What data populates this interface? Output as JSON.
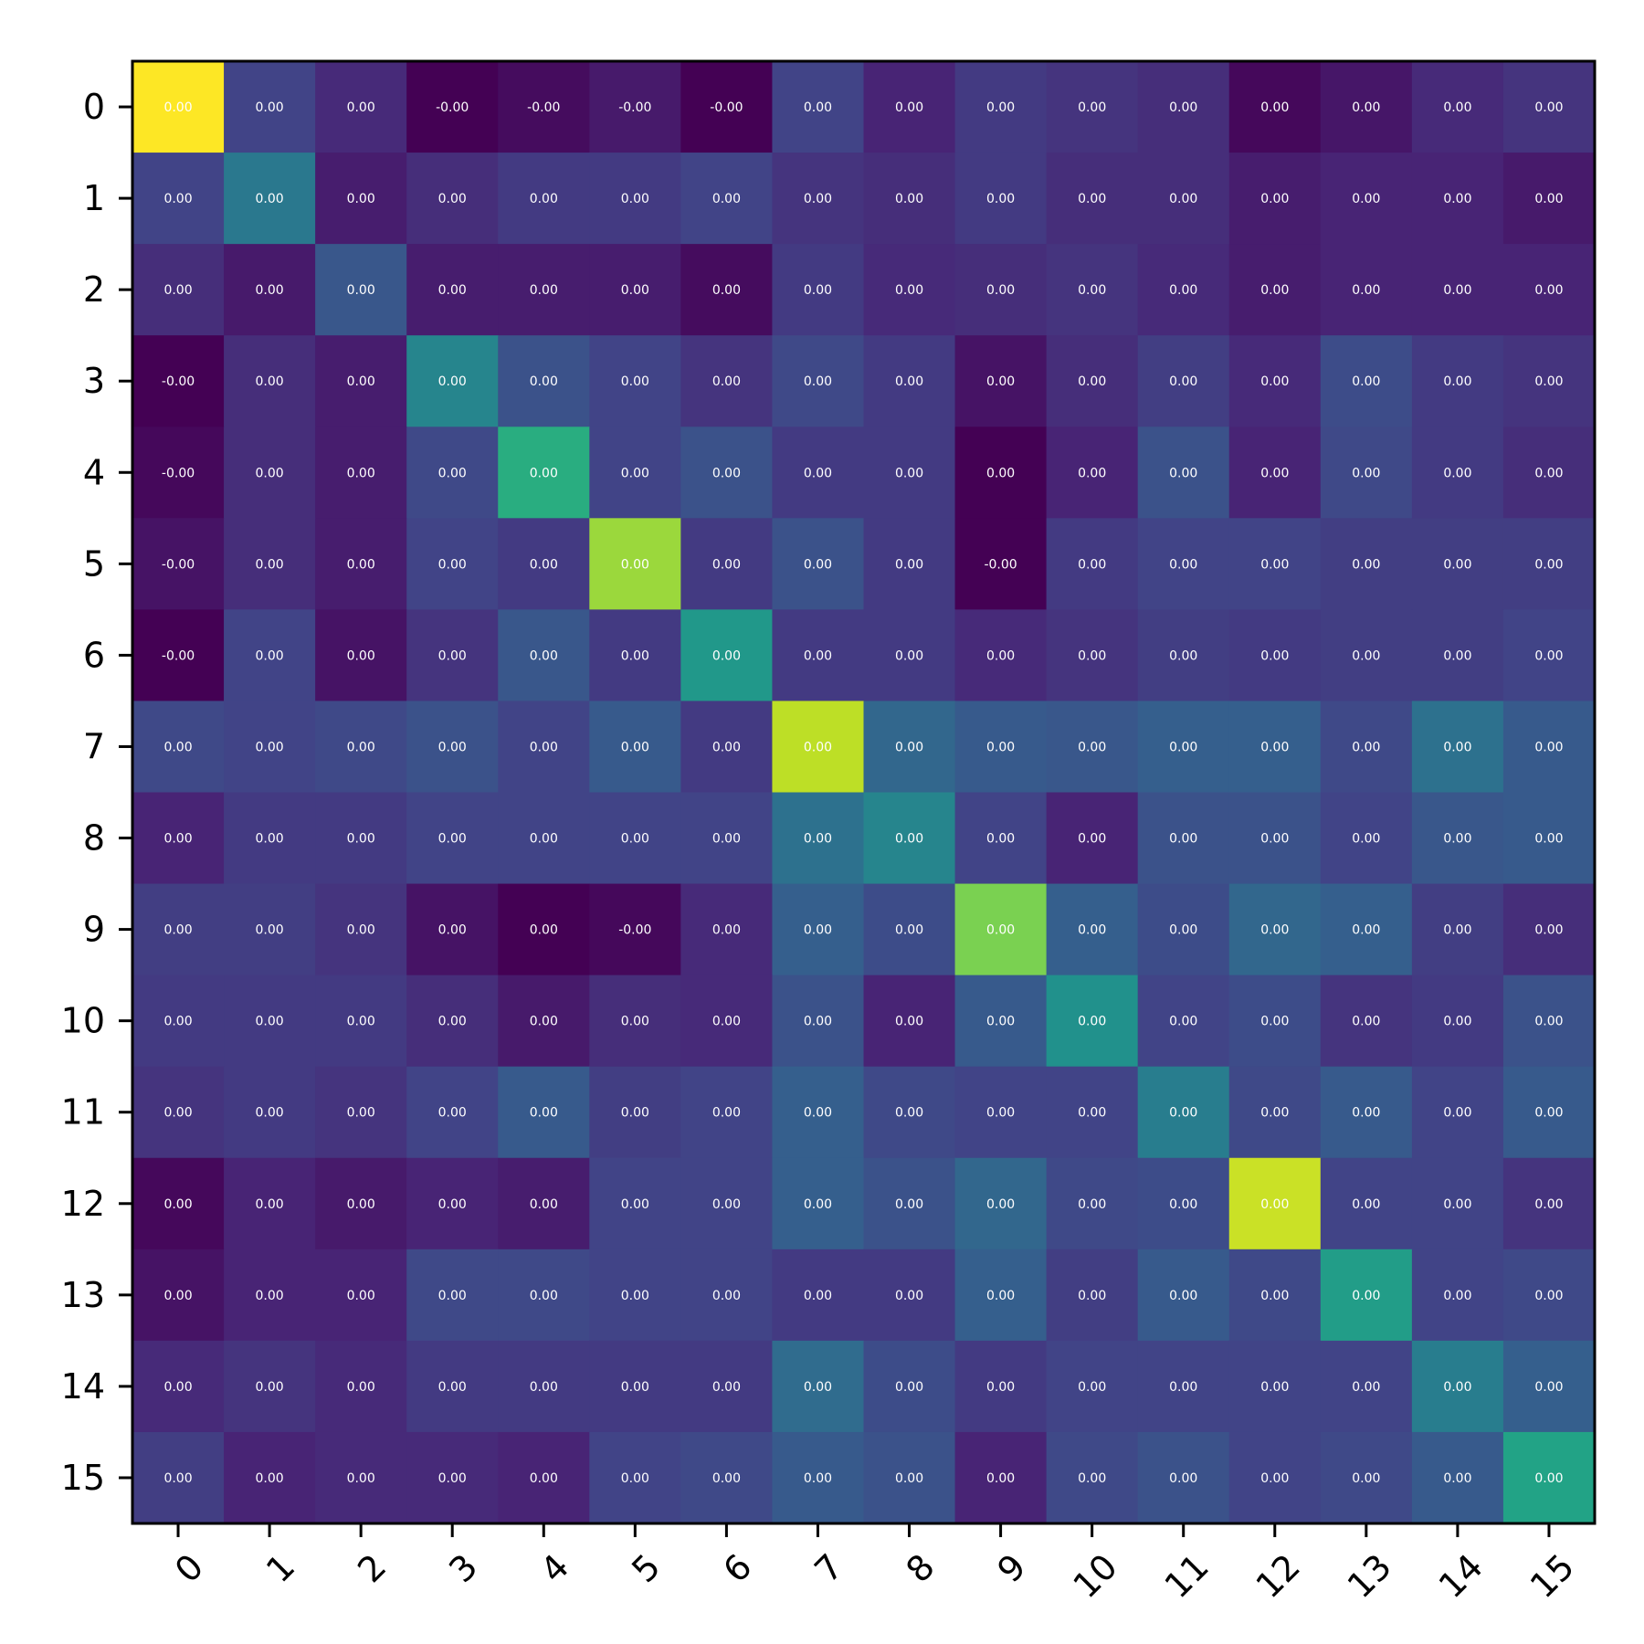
{
  "chart_data": {
    "type": "heatmap",
    "title": "",
    "xlabel": "",
    "ylabel": "",
    "x_ticks": [
      "0",
      "1",
      "2",
      "3",
      "4",
      "5",
      "6",
      "7",
      "8",
      "9",
      "10",
      "11",
      "12",
      "13",
      "14",
      "15"
    ],
    "y_ticks": [
      "0",
      "1",
      "2",
      "3",
      "4",
      "5",
      "6",
      "7",
      "8",
      "9",
      "10",
      "11",
      "12",
      "13",
      "14",
      "15"
    ],
    "colormap": "viridis",
    "colorbar": false,
    "grid": false,
    "intensity": [
      [
        1.0,
        0.2,
        0.12,
        0.0,
        0.03,
        0.07,
        0.0,
        0.2,
        0.1,
        0.17,
        0.15,
        0.13,
        0.02,
        0.06,
        0.12,
        0.15
      ],
      [
        0.2,
        0.4,
        0.08,
        0.13,
        0.17,
        0.17,
        0.2,
        0.15,
        0.13,
        0.17,
        0.13,
        0.13,
        0.08,
        0.1,
        0.1,
        0.07
      ],
      [
        0.13,
        0.07,
        0.27,
        0.08,
        0.08,
        0.08,
        0.03,
        0.17,
        0.12,
        0.13,
        0.15,
        0.12,
        0.08,
        0.1,
        0.1,
        0.1
      ],
      [
        0.0,
        0.13,
        0.08,
        0.45,
        0.25,
        0.2,
        0.15,
        0.22,
        0.17,
        0.05,
        0.13,
        0.18,
        0.12,
        0.23,
        0.17,
        0.15
      ],
      [
        0.02,
        0.13,
        0.08,
        0.22,
        0.62,
        0.2,
        0.25,
        0.17,
        0.17,
        0.0,
        0.1,
        0.25,
        0.1,
        0.22,
        0.17,
        0.13
      ],
      [
        0.05,
        0.13,
        0.08,
        0.2,
        0.17,
        0.85,
        0.17,
        0.25,
        0.17,
        0.0,
        0.17,
        0.2,
        0.2,
        0.18,
        0.18,
        0.18
      ],
      [
        0.0,
        0.2,
        0.05,
        0.15,
        0.27,
        0.17,
        0.53,
        0.17,
        0.17,
        0.12,
        0.15,
        0.18,
        0.17,
        0.18,
        0.18,
        0.2
      ],
      [
        0.22,
        0.2,
        0.22,
        0.25,
        0.2,
        0.28,
        0.17,
        0.9,
        0.33,
        0.28,
        0.27,
        0.3,
        0.3,
        0.22,
        0.37,
        0.28
      ],
      [
        0.1,
        0.17,
        0.17,
        0.2,
        0.2,
        0.2,
        0.2,
        0.37,
        0.45,
        0.2,
        0.1,
        0.25,
        0.25,
        0.2,
        0.27,
        0.28
      ],
      [
        0.18,
        0.18,
        0.15,
        0.05,
        0.0,
        0.02,
        0.12,
        0.3,
        0.23,
        0.8,
        0.3,
        0.23,
        0.33,
        0.3,
        0.18,
        0.13
      ],
      [
        0.17,
        0.17,
        0.17,
        0.13,
        0.07,
        0.13,
        0.12,
        0.25,
        0.1,
        0.28,
        0.5,
        0.2,
        0.23,
        0.15,
        0.17,
        0.25
      ],
      [
        0.15,
        0.17,
        0.15,
        0.2,
        0.28,
        0.18,
        0.2,
        0.3,
        0.22,
        0.2,
        0.2,
        0.42,
        0.22,
        0.28,
        0.2,
        0.28
      ],
      [
        0.02,
        0.1,
        0.07,
        0.1,
        0.08,
        0.2,
        0.2,
        0.3,
        0.25,
        0.33,
        0.22,
        0.23,
        0.92,
        0.2,
        0.2,
        0.15
      ],
      [
        0.05,
        0.1,
        0.1,
        0.22,
        0.22,
        0.2,
        0.2,
        0.17,
        0.17,
        0.3,
        0.18,
        0.28,
        0.22,
        0.55,
        0.2,
        0.22
      ],
      [
        0.12,
        0.15,
        0.12,
        0.17,
        0.17,
        0.17,
        0.17,
        0.35,
        0.23,
        0.17,
        0.2,
        0.2,
        0.2,
        0.2,
        0.42,
        0.3
      ],
      [
        0.18,
        0.1,
        0.12,
        0.12,
        0.1,
        0.2,
        0.22,
        0.28,
        0.25,
        0.1,
        0.22,
        0.25,
        0.2,
        0.22,
        0.28,
        0.58
      ]
    ],
    "cell_labels": [
      [
        "0.00",
        "0.00",
        "0.00",
        "-0.00",
        "-0.00",
        "-0.00",
        "-0.00",
        "0.00",
        "0.00",
        "0.00",
        "0.00",
        "0.00",
        "0.00",
        "0.00",
        "0.00",
        "0.00"
      ],
      [
        "0.00",
        "0.00",
        "0.00",
        "0.00",
        "0.00",
        "0.00",
        "0.00",
        "0.00",
        "0.00",
        "0.00",
        "0.00",
        "0.00",
        "0.00",
        "0.00",
        "0.00",
        "0.00"
      ],
      [
        "0.00",
        "0.00",
        "0.00",
        "0.00",
        "0.00",
        "0.00",
        "0.00",
        "0.00",
        "0.00",
        "0.00",
        "0.00",
        "0.00",
        "0.00",
        "0.00",
        "0.00",
        "0.00"
      ],
      [
        "-0.00",
        "0.00",
        "0.00",
        "0.00",
        "0.00",
        "0.00",
        "0.00",
        "0.00",
        "0.00",
        "0.00",
        "0.00",
        "0.00",
        "0.00",
        "0.00",
        "0.00",
        "0.00"
      ],
      [
        "-0.00",
        "0.00",
        "0.00",
        "0.00",
        "0.00",
        "0.00",
        "0.00",
        "0.00",
        "0.00",
        "0.00",
        "0.00",
        "0.00",
        "0.00",
        "0.00",
        "0.00",
        "0.00"
      ],
      [
        "-0.00",
        "0.00",
        "0.00",
        "0.00",
        "0.00",
        "0.00",
        "0.00",
        "0.00",
        "0.00",
        "-0.00",
        "0.00",
        "0.00",
        "0.00",
        "0.00",
        "0.00",
        "0.00"
      ],
      [
        "-0.00",
        "0.00",
        "0.00",
        "0.00",
        "0.00",
        "0.00",
        "0.00",
        "0.00",
        "0.00",
        "0.00",
        "0.00",
        "0.00",
        "0.00",
        "0.00",
        "0.00",
        "0.00"
      ],
      [
        "0.00",
        "0.00",
        "0.00",
        "0.00",
        "0.00",
        "0.00",
        "0.00",
        "0.00",
        "0.00",
        "0.00",
        "0.00",
        "0.00",
        "0.00",
        "0.00",
        "0.00",
        "0.00"
      ],
      [
        "0.00",
        "0.00",
        "0.00",
        "0.00",
        "0.00",
        "0.00",
        "0.00",
        "0.00",
        "0.00",
        "0.00",
        "0.00",
        "0.00",
        "0.00",
        "0.00",
        "0.00",
        "0.00"
      ],
      [
        "0.00",
        "0.00",
        "0.00",
        "0.00",
        "0.00",
        "-0.00",
        "0.00",
        "0.00",
        "0.00",
        "0.00",
        "0.00",
        "0.00",
        "0.00",
        "0.00",
        "0.00",
        "0.00"
      ],
      [
        "0.00",
        "0.00",
        "0.00",
        "0.00",
        "0.00",
        "0.00",
        "0.00",
        "0.00",
        "0.00",
        "0.00",
        "0.00",
        "0.00",
        "0.00",
        "0.00",
        "0.00",
        "0.00"
      ],
      [
        "0.00",
        "0.00",
        "0.00",
        "0.00",
        "0.00",
        "0.00",
        "0.00",
        "0.00",
        "0.00",
        "0.00",
        "0.00",
        "0.00",
        "0.00",
        "0.00",
        "0.00",
        "0.00"
      ],
      [
        "0.00",
        "0.00",
        "0.00",
        "0.00",
        "0.00",
        "0.00",
        "0.00",
        "0.00",
        "0.00",
        "0.00",
        "0.00",
        "0.00",
        "0.00",
        "0.00",
        "0.00",
        "0.00"
      ],
      [
        "0.00",
        "0.00",
        "0.00",
        "0.00",
        "0.00",
        "0.00",
        "0.00",
        "0.00",
        "0.00",
        "0.00",
        "0.00",
        "0.00",
        "0.00",
        "0.00",
        "0.00",
        "0.00"
      ],
      [
        "0.00",
        "0.00",
        "0.00",
        "0.00",
        "0.00",
        "0.00",
        "0.00",
        "0.00",
        "0.00",
        "0.00",
        "0.00",
        "0.00",
        "0.00",
        "0.00",
        "0.00",
        "0.00"
      ],
      [
        "0.00",
        "0.00",
        "0.00",
        "0.00",
        "0.00",
        "0.00",
        "0.00",
        "0.00",
        "0.00",
        "0.00",
        "0.00",
        "0.00",
        "0.00",
        "0.00",
        "0.00",
        "0.00"
      ]
    ]
  }
}
